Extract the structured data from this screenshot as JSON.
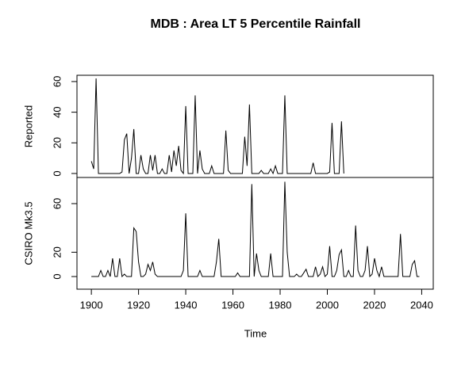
{
  "chart_data": {
    "type": "line",
    "title": "MDB : Area LT 5 Percentile Rainfall",
    "xlabel": "Time",
    "xlim": [
      1893.9,
      2044.9
    ],
    "xticks": [
      1900,
      1920,
      1940,
      1960,
      1980,
      2000,
      2020,
      2040
    ],
    "color": "#000000",
    "panels": [
      {
        "ylabel": "Reported",
        "ylim": [
          -2.6,
          64.1
        ],
        "yticks": [
          0,
          20,
          40,
          60
        ],
        "x": [
          1900,
          1901,
          1902,
          1903,
          1904,
          1905,
          1906,
          1907,
          1908,
          1909,
          1910,
          1911,
          1912,
          1913,
          1914,
          1915,
          1916,
          1917,
          1918,
          1919,
          1920,
          1921,
          1922,
          1923,
          1924,
          1925,
          1926,
          1927,
          1928,
          1929,
          1930,
          1931,
          1932,
          1933,
          1934,
          1935,
          1936,
          1937,
          1938,
          1939,
          1940,
          1941,
          1942,
          1943,
          1944,
          1945,
          1946,
          1947,
          1948,
          1949,
          1950,
          1951,
          1952,
          1953,
          1954,
          1955,
          1956,
          1957,
          1958,
          1959,
          1960,
          1961,
          1962,
          1963,
          1964,
          1965,
          1966,
          1967,
          1968,
          1969,
          1970,
          1971,
          1972,
          1973,
          1974,
          1975,
          1976,
          1977,
          1978,
          1979,
          1980,
          1981,
          1982,
          1983,
          1984,
          1985,
          1986,
          1987,
          1988,
          1989,
          1990,
          1991,
          1992,
          1993,
          1994,
          1995,
          1996,
          1997,
          1998,
          1999,
          2000,
          2001,
          2002,
          2003,
          2004,
          2005,
          2006,
          2007
        ],
        "values": [
          8,
          3,
          62,
          0,
          0,
          0,
          0,
          0,
          0,
          0,
          0,
          0,
          0,
          1,
          22,
          26,
          0,
          10,
          29,
          0,
          0,
          12,
          3,
          0,
          0,
          12,
          2,
          12,
          0,
          0,
          3,
          0,
          0,
          12,
          1,
          15,
          5,
          18,
          2,
          0,
          44,
          0,
          0,
          0,
          51,
          0,
          15,
          3,
          0,
          0,
          0,
          5,
          0,
          0,
          0,
          0,
          0,
          28,
          2,
          0,
          0,
          0,
          0,
          0,
          0,
          24,
          5,
          45,
          0,
          0,
          0,
          0,
          2,
          0,
          0,
          0,
          3,
          0,
          5,
          0,
          0,
          0,
          51,
          0,
          0,
          0,
          0,
          0,
          0,
          0,
          0,
          0,
          0,
          0,
          7,
          0,
          0,
          0,
          0,
          0,
          0,
          1,
          33,
          0,
          0,
          0,
          34,
          0
        ]
      },
      {
        "ylabel": "CSIRO Mk3.5",
        "ylim": [
          -10.4,
          81.5
        ],
        "yticks": [
          0,
          20,
          60
        ],
        "x": [
          1900,
          1901,
          1902,
          1903,
          1904,
          1905,
          1906,
          1907,
          1908,
          1909,
          1910,
          1911,
          1912,
          1913,
          1914,
          1915,
          1916,
          1917,
          1918,
          1919,
          1920,
          1921,
          1922,
          1923,
          1924,
          1925,
          1926,
          1927,
          1928,
          1929,
          1930,
          1931,
          1932,
          1933,
          1934,
          1935,
          1936,
          1937,
          1938,
          1939,
          1940,
          1941,
          1942,
          1943,
          1944,
          1945,
          1946,
          1947,
          1948,
          1949,
          1950,
          1951,
          1952,
          1953,
          1954,
          1955,
          1956,
          1957,
          1958,
          1959,
          1960,
          1961,
          1962,
          1963,
          1964,
          1965,
          1966,
          1967,
          1968,
          1969,
          1970,
          1971,
          1972,
          1973,
          1974,
          1975,
          1976,
          1977,
          1978,
          1979,
          1980,
          1981,
          1982,
          1983,
          1984,
          1985,
          1986,
          1987,
          1988,
          1989,
          1990,
          1991,
          1992,
          1993,
          1994,
          1995,
          1996,
          1997,
          1998,
          1999,
          2000,
          2001,
          2002,
          2003,
          2004,
          2005,
          2006,
          2007,
          2008,
          2009,
          2010,
          2011,
          2012,
          2013,
          2014,
          2015,
          2016,
          2017,
          2018,
          2019,
          2020,
          2021,
          2022,
          2023,
          2024,
          2025,
          2026,
          2027,
          2028,
          2029,
          2030,
          2031,
          2032,
          2033,
          2034,
          2035,
          2036,
          2037,
          2038,
          2039
        ],
        "values": [
          0,
          0,
          0,
          0,
          5,
          0,
          0,
          5,
          0,
          15,
          0,
          0,
          15,
          0,
          2,
          0,
          0,
          0,
          40,
          37,
          12,
          0,
          0,
          2,
          10,
          5,
          12,
          2,
          0,
          0,
          0,
          0,
          0,
          0,
          0,
          0,
          0,
          0,
          0,
          5,
          52,
          0,
          0,
          0,
          0,
          0,
          5,
          0,
          0,
          0,
          0,
          0,
          0,
          12,
          31,
          0,
          0,
          0,
          0,
          0,
          0,
          0,
          3,
          0,
          0,
          0,
          0,
          0,
          76,
          0,
          19,
          5,
          0,
          0,
          0,
          0,
          19,
          0,
          0,
          0,
          0,
          0,
          78,
          20,
          0,
          0,
          0,
          2,
          0,
          0,
          3,
          6,
          0,
          0,
          0,
          8,
          0,
          2,
          8,
          0,
          2,
          25,
          0,
          0,
          5,
          18,
          22,
          0,
          0,
          5,
          0,
          0,
          42,
          5,
          0,
          0,
          5,
          25,
          0,
          2,
          15,
          5,
          0,
          8,
          0,
          0,
          0,
          0,
          0,
          0,
          0,
          35,
          0,
          0,
          0,
          0,
          10,
          13,
          0,
          0
        ]
      }
    ]
  }
}
